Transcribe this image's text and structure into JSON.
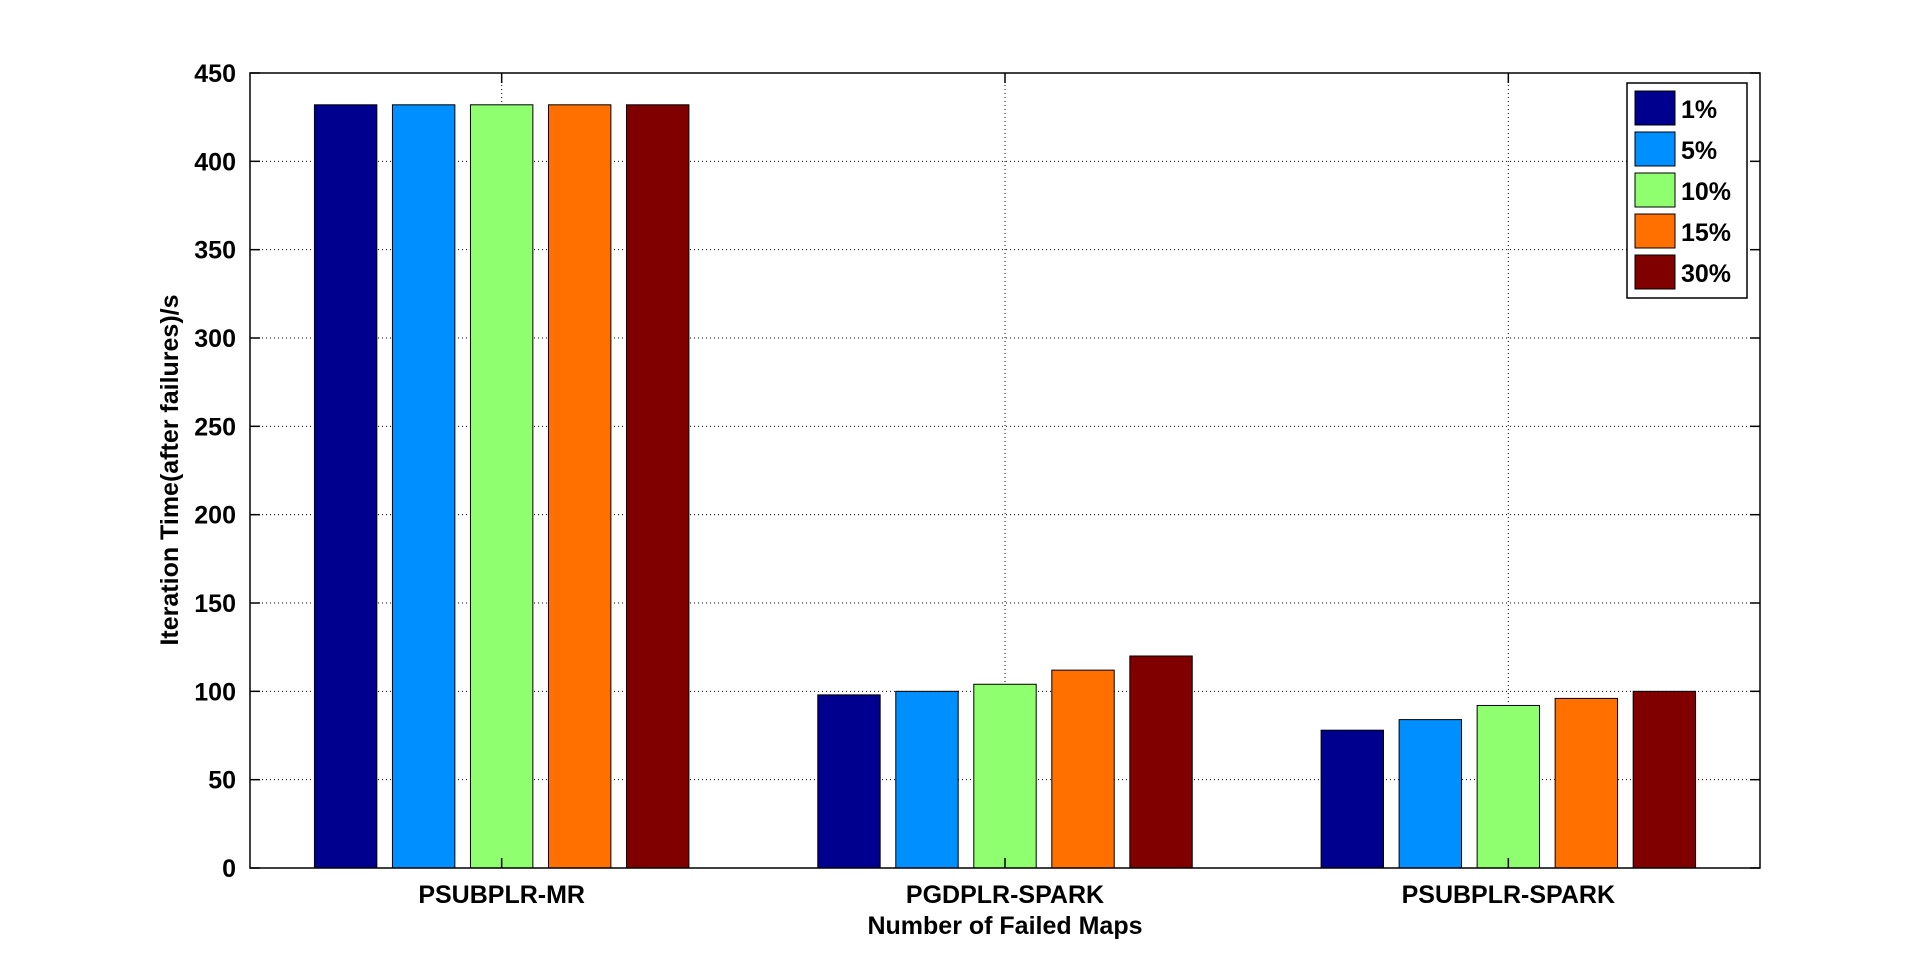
{
  "chart_data": {
    "type": "bar",
    "title": "",
    "xlabel": "Number of Failed Maps",
    "ylabel": "Iteration Time(after failures)/s",
    "categories": [
      "PSUBPLR-MR",
      "PGDPLR-SPARK",
      "PSUBPLR-SPARK"
    ],
    "ylim": [
      0,
      450
    ],
    "yticks": [
      0,
      50,
      100,
      150,
      200,
      250,
      300,
      350,
      400,
      450
    ],
    "grid": true,
    "legend_position": "top-right",
    "series": [
      {
        "name": "1%",
        "color": "#00008f",
        "values": [
          432,
          98,
          78
        ]
      },
      {
        "name": "5%",
        "color": "#008fff",
        "values": [
          432,
          100,
          84
        ]
      },
      {
        "name": "10%",
        "color": "#8fff70",
        "values": [
          432,
          104,
          92
        ]
      },
      {
        "name": "15%",
        "color": "#ff7000",
        "values": [
          432,
          112,
          96
        ]
      },
      {
        "name": "30%",
        "color": "#800000",
        "values": [
          432,
          120,
          100
        ]
      }
    ]
  }
}
